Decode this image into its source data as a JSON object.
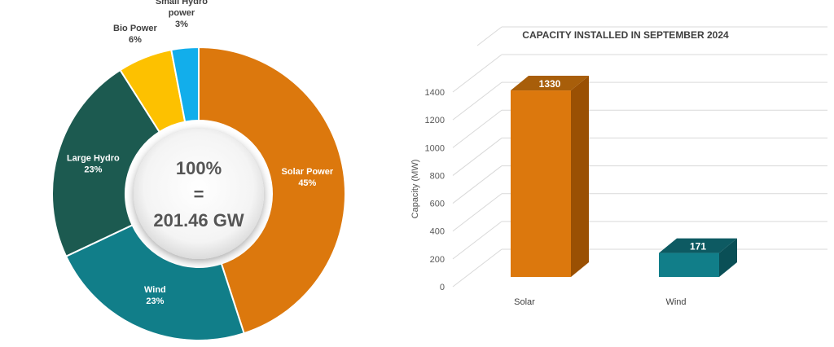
{
  "chart_data": [
    {
      "type": "pie",
      "title": "",
      "center_label": {
        "line1": "100%",
        "line2": "=",
        "line3": "201.46 GW"
      },
      "slices": [
        {
          "name": "Solar Power",
          "label_lines": [
            "Solar Power",
            "45%"
          ],
          "percent": 45,
          "value_pct_text": "45%",
          "color": "#DC780D"
        },
        {
          "name": "Wind",
          "label_lines": [
            "Wind",
            "23%"
          ],
          "percent": 23,
          "value_pct_text": "23%",
          "color": "#117E89"
        },
        {
          "name": "Large Hydro",
          "label_lines": [
            "Large Hydro",
            "23%"
          ],
          "percent": 23,
          "value_pct_text": "23%",
          "color": "#1C5A50"
        },
        {
          "name": "Bio Power",
          "label_lines": [
            "Bio Power",
            "6%"
          ],
          "percent": 6,
          "value_pct_text": "6%",
          "color": "#FDC100"
        },
        {
          "name": "Small Hydro power",
          "label_lines": [
            "Small Hydro",
            "power",
            "3%"
          ],
          "percent": 3,
          "value_pct_text": "3%",
          "color": "#12AEEB"
        }
      ]
    },
    {
      "type": "bar",
      "title": "CAPACITY INSTALLED IN SEPTEMBER 2024",
      "xlabel": "",
      "ylabel": "Capacity (MW)",
      "categories": [
        "Solar",
        "Wind"
      ],
      "values": [
        1330,
        171
      ],
      "value_labels": [
        "1330",
        "171"
      ],
      "colors": [
        "#DC780D",
        "#117E89"
      ],
      "ylim": [
        0,
        1400
      ],
      "yticks": [
        "0",
        "200",
        "400",
        "600",
        "800",
        "1000",
        "1200",
        "1400"
      ],
      "grid": true,
      "style": "3d"
    }
  ]
}
